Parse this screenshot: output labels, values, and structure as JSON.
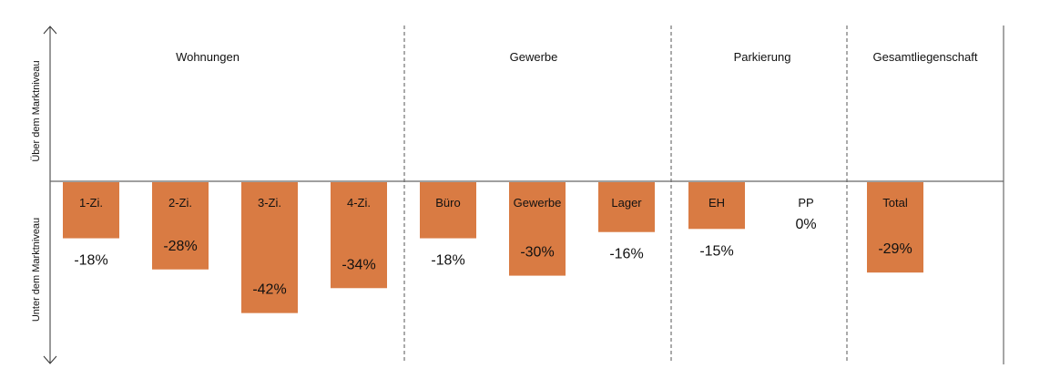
{
  "chart_data": {
    "type": "bar",
    "title": "",
    "xlabel": "",
    "ylabel_top": "Über dem Marktniveau",
    "ylabel_bottom": "Unter dem Marktniveau",
    "groups": [
      {
        "name": "Wohnungen",
        "categories": [
          "1-Zi.",
          "2-Zi.",
          "3-Zi.",
          "4-Zi."
        ]
      },
      {
        "name": "Gewerbe",
        "categories": [
          "Büro",
          "Gewerbe",
          "Lager"
        ]
      },
      {
        "name": "Parkierung",
        "categories": [
          "EH",
          "PP"
        ]
      },
      {
        "name": "Gesamtliegenschaft",
        "categories": [
          "Total"
        ]
      }
    ],
    "categories": [
      "1-Zi.",
      "2-Zi.",
      "3-Zi.",
      "4-Zi.",
      "Büro",
      "Gewerbe",
      "Lager",
      "EH",
      "PP",
      "Total"
    ],
    "values": [
      -18,
      -28,
      -42,
      -34,
      -18,
      -30,
      -16,
      -15,
      0,
      -29
    ],
    "value_labels": [
      "-18%",
      "-28%",
      "-42%",
      "-34%",
      "-18%",
      "-30%",
      "-16%",
      "-15%",
      "0%",
      "-29%"
    ],
    "unit": "%",
    "bar_color": "#D97B43",
    "grid": false,
    "legend": "none"
  }
}
